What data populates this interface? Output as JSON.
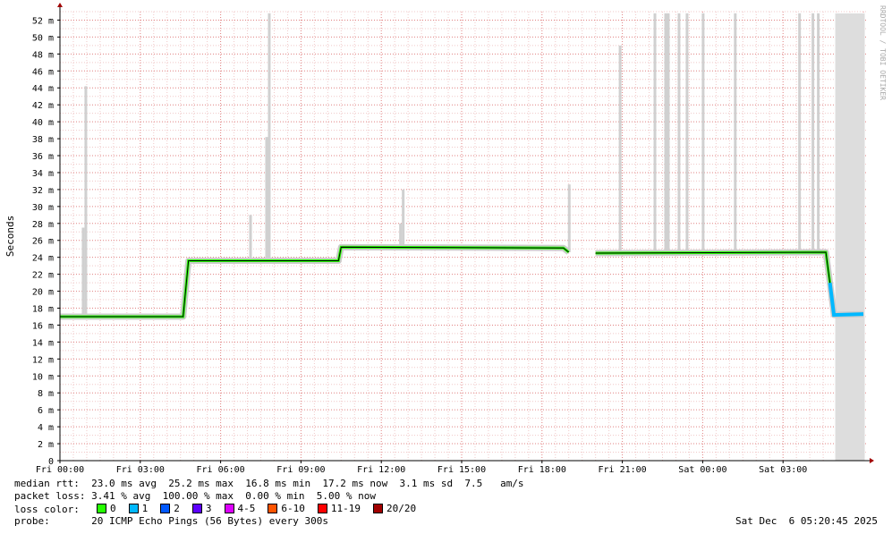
{
  "chart_data": {
    "type": "line",
    "ylabel": "Seconds",
    "y_ticks": [
      "0",
      "2 m",
      "4 m",
      "6 m",
      "8 m",
      "10 m",
      "12 m",
      "14 m",
      "16 m",
      "18 m",
      "20 m",
      "22 m",
      "24 m",
      "26 m",
      "28 m",
      "30 m",
      "32 m",
      "34 m",
      "36 m",
      "38 m",
      "40 m",
      "42 m",
      "44 m",
      "46 m",
      "48 m",
      "50 m",
      "52 m"
    ],
    "ylim": [
      0,
      53
    ],
    "x_ticks": [
      "Fri 00:00",
      "Fri 03:00",
      "Fri 06:00",
      "Fri 09:00",
      "Fri 12:00",
      "Fri 15:00",
      "Fri 18:00",
      "Fri 21:00",
      "Sat 00:00",
      "Sat 03:00"
    ],
    "xlim_hours": [
      0,
      30.1
    ],
    "median_series": [
      {
        "t": 0.0,
        "v": 17.0
      },
      {
        "t": 4.6,
        "v": 17.0
      },
      {
        "t": 4.65,
        "v": 18.7
      },
      {
        "t": 4.8,
        "v": 23.6
      },
      {
        "t": 10.4,
        "v": 23.6
      },
      {
        "t": 10.5,
        "v": 25.2
      },
      {
        "t": 18.8,
        "v": 25.1
      },
      {
        "t": 19.0,
        "v": 24.6
      },
      {
        "t": 20.0,
        "v": 24.5
      },
      {
        "t": 28.6,
        "v": 24.6
      },
      {
        "t": 28.75,
        "v": 21.0
      },
      {
        "t": 28.9,
        "v": 17.2
      },
      {
        "t": 30.0,
        "v": 17.3
      }
    ],
    "spikes": [
      {
        "t": 0.85,
        "v": 27.5
      },
      {
        "t": 0.95,
        "v": 44.2
      },
      {
        "t": 7.1,
        "v": 29.0
      },
      {
        "t": 7.7,
        "v": 38.2
      },
      {
        "t": 7.8,
        "v": 52.8
      },
      {
        "t": 12.7,
        "v": 28.0
      },
      {
        "t": 12.8,
        "v": 32.0
      },
      {
        "t": 19.0,
        "v": 32.6
      },
      {
        "t": 20.9,
        "v": 49.0
      },
      {
        "t": 22.2,
        "v": 52.8
      },
      {
        "t": 22.6,
        "v": 52.8
      },
      {
        "t": 22.7,
        "v": 52.8
      },
      {
        "t": 23.1,
        "v": 52.8
      },
      {
        "t": 23.4,
        "v": 52.8
      },
      {
        "t": 24.0,
        "v": 52.8
      },
      {
        "t": 25.2,
        "v": 52.8
      },
      {
        "t": 27.6,
        "v": 52.8
      },
      {
        "t": 28.1,
        "v": 52.8
      },
      {
        "t": 28.3,
        "v": 52.8
      }
    ],
    "gap": [
      19.05,
      20.0
    ],
    "full_loss_region": [
      28.95,
      30.05
    ],
    "grid": true
  },
  "stats": {
    "rtt_label": "median rtt:",
    "rtt_values": "23.0 ms avg  25.2 ms max  16.8 ms min  17.2 ms now  3.1 ms sd  7.5   am/s",
    "loss_label": "packet loss:",
    "loss_values": "3.41 % avg  100.00 % max  0.00 % min  5.00 % now",
    "color_label": "loss color:",
    "probe_label": "probe:",
    "probe_value": "20 ICMP Echo Pings (56 Bytes) every 300s",
    "timestamp": "Sat Dec  6 05:20:45 2025"
  },
  "legend": [
    {
      "label": "0",
      "color": "#26ff00"
    },
    {
      "label": "1",
      "color": "#00b8ff"
    },
    {
      "label": "2",
      "color": "#0059ff"
    },
    {
      "label": "3",
      "color": "#5e00ff"
    },
    {
      "label": "4-5",
      "color": "#dd00ff"
    },
    {
      "label": "6-10",
      "color": "#ff5500"
    },
    {
      "label": "11-19",
      "color": "#ff0000"
    },
    {
      "label": "20/20",
      "color": "#a10000"
    }
  ],
  "watermark": "RRDTOOL / TOBI OETIKER"
}
